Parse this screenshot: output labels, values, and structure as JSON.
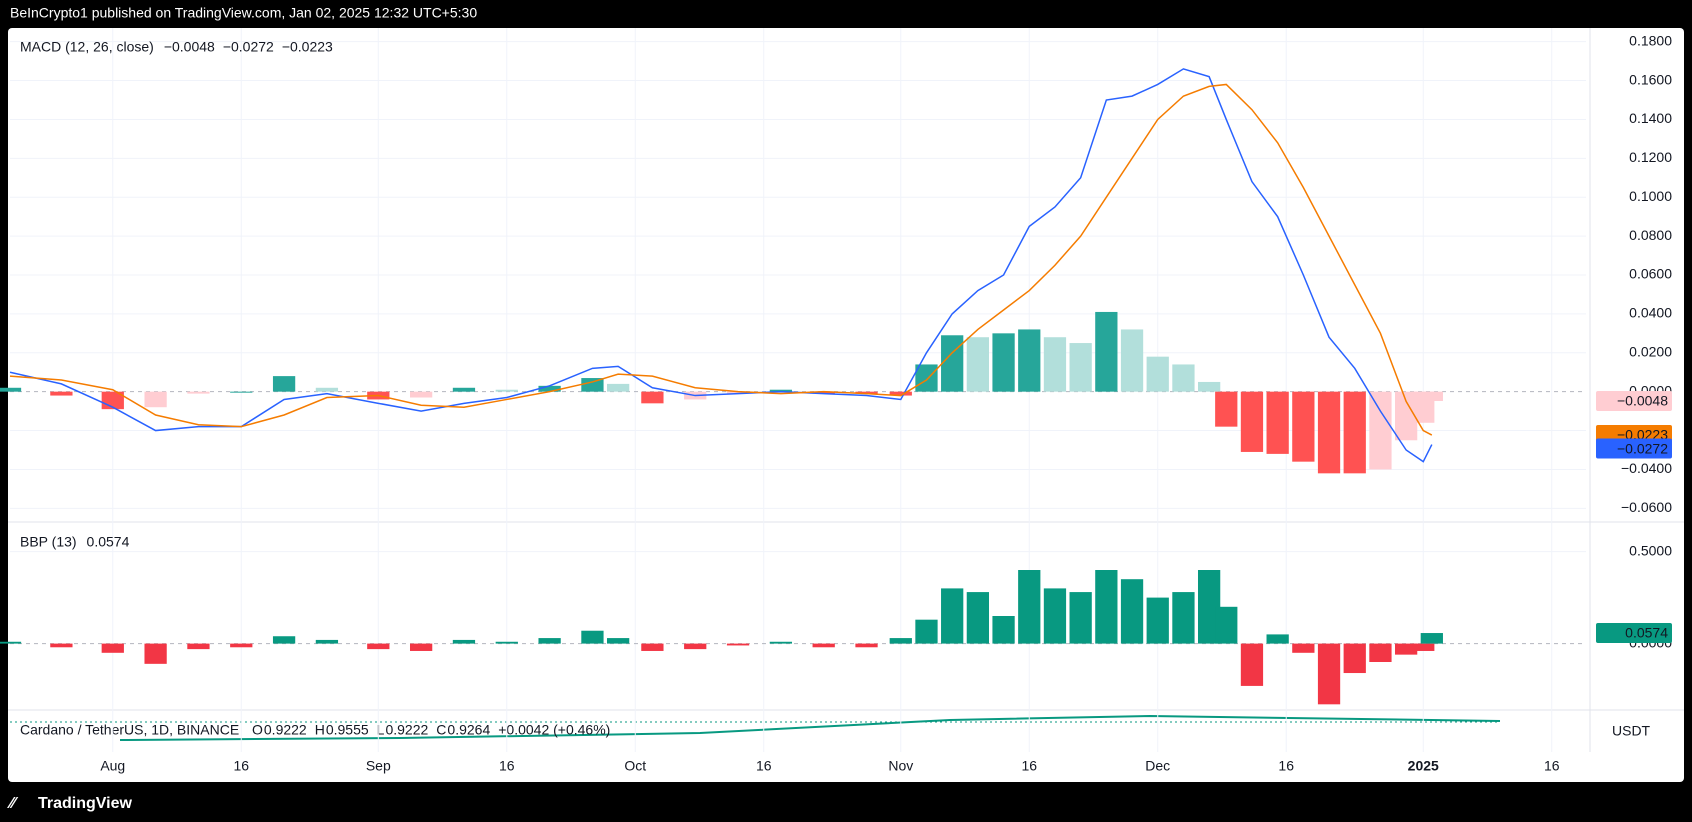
{
  "header": {
    "published": "BeInCrypto1 published on TradingView.com, Jan 02, 2025 12:32 UTC+5:30"
  },
  "footer": {
    "brand": "TradingView"
  },
  "symbol": {
    "name": "Cardano / TetherUS, 1D, BINANCE",
    "o_label": "O",
    "o": "0.9222",
    "h_label": "H",
    "h": "0.9555",
    "l_label": "L",
    "l": "0.9222",
    "c_label": "C",
    "c": "0.9264",
    "change": "+0.0042 (+0.46%)",
    "currency": "USDT"
  },
  "x_axis": {
    "xlim": [
      0,
      184
    ],
    "xticks": [
      {
        "value": 12,
        "label": "Aug"
      },
      {
        "value": 27,
        "label": "16"
      },
      {
        "value": 43,
        "label": "Sep"
      },
      {
        "value": 58,
        "label": "16"
      },
      {
        "value": 73,
        "label": "Oct"
      },
      {
        "value": 88,
        "label": "16"
      },
      {
        "value": 104,
        "label": "Nov"
      },
      {
        "value": 119,
        "label": "16"
      },
      {
        "value": 134,
        "label": "Dec"
      },
      {
        "value": 149,
        "label": "16"
      },
      {
        "value": 165,
        "label": "2025"
      },
      {
        "value": 180,
        "label": "16"
      }
    ]
  },
  "chart_data": [
    {
      "type": "line",
      "title": "MACD (12, 26, close)",
      "x": [
        0,
        6,
        12,
        17,
        22,
        27,
        32,
        37,
        43,
        48,
        53,
        58,
        63,
        68,
        71,
        75,
        80,
        85,
        90,
        95,
        100,
        104,
        107,
        110,
        113,
        116,
        119,
        122,
        125,
        128,
        131,
        134,
        137,
        140,
        142,
        145,
        148,
        151,
        154,
        157,
        160,
        163,
        165,
        166
      ],
      "histogram": {
        "last_label": "−0.0048",
        "badge_color": "#ffcdd2",
        "colors": {
          "up_strong": "#26a69a",
          "up_weak": "#b2dfdb",
          "down_strong": "#ff5252",
          "down_weak": "#ffcdd2"
        },
        "values": [
          0.002,
          -0.002,
          -0.009,
          -0.008,
          -0.001,
          0,
          0.008,
          0.002,
          -0.004,
          -0.003,
          0.002,
          0.001,
          0.003,
          0.007,
          0.004,
          -0.006,
          -0.004,
          -0.001,
          0.001,
          -0.001,
          -0.001,
          -0.002,
          0.014,
          0.029,
          0.028,
          0.03,
          0.032,
          0.028,
          0.025,
          0.041,
          0.032,
          0.018,
          0.014,
          0.005,
          -0.018,
          -0.031,
          -0.032,
          -0.036,
          -0.042,
          -0.042,
          -0.04,
          -0.025,
          -0.016,
          -0.0048
        ]
      },
      "series": [
        {
          "color": "#2962ff",
          "last_label": "−0.0272",
          "values": [
            0.01,
            0.004,
            -0.008,
            -0.02,
            -0.018,
            -0.018,
            -0.004,
            -0.001,
            -0.006,
            -0.01,
            -0.006,
            -0.003,
            0.003,
            0.012,
            0.013,
            0.002,
            -0.002,
            -0.001,
            0,
            -0.001,
            -0.002,
            -0.004,
            0.02,
            0.04,
            0.052,
            0.06,
            0.085,
            0.095,
            0.11,
            0.15,
            0.152,
            0.158,
            0.166,
            0.162,
            0.14,
            0.108,
            0.09,
            0.06,
            0.028,
            0.012,
            -0.01,
            -0.03,
            -0.036,
            -0.0272
          ]
        },
        {
          "color": "#f57c00",
          "last_label": "−0.0223",
          "values": [
            0.008,
            0.006,
            0.001,
            -0.012,
            -0.017,
            -0.018,
            -0.012,
            -0.003,
            -0.002,
            -0.007,
            -0.008,
            -0.004,
            0,
            0.005,
            0.009,
            0.008,
            0.002,
            0,
            -0.001,
            0,
            -0.001,
            -0.002,
            0.006,
            0.02,
            0.032,
            0.042,
            0.052,
            0.065,
            0.08,
            0.1,
            0.12,
            0.14,
            0.152,
            0.157,
            0.158,
            0.145,
            0.128,
            0.105,
            0.08,
            0.055,
            0.03,
            -0.005,
            -0.02,
            -0.0223
          ]
        }
      ],
      "ylim": [
        -0.066,
        0.186
      ],
      "yticks": [
        {
          "value": 0.18,
          "label": "0.1800"
        },
        {
          "value": 0.16,
          "label": "0.1600"
        },
        {
          "value": 0.14,
          "label": "0.1400"
        },
        {
          "value": 0.12,
          "label": "0.1200"
        },
        {
          "value": 0.1,
          "label": "0.1000"
        },
        {
          "value": 0.08,
          "label": "0.0800"
        },
        {
          "value": 0.06,
          "label": "0.0600"
        },
        {
          "value": 0.04,
          "label": "0.0400"
        },
        {
          "value": 0.02,
          "label": "0.0200"
        },
        {
          "value": 0,
          "label": "0.0000"
        },
        {
          "value": -0.02,
          "label": "−0.0200"
        },
        {
          "value": -0.04,
          "label": "−0.0400"
        },
        {
          "value": -0.06,
          "label": "−0.0600"
        }
      ],
      "grid": true
    },
    {
      "type": "bar",
      "title": "BBP (13)",
      "last_label": "0.0574",
      "pos_color": "#089981",
      "neg_color": "#f23645",
      "x": [
        0,
        6,
        12,
        17,
        22,
        27,
        32,
        37,
        43,
        48,
        53,
        58,
        63,
        68,
        71,
        75,
        80,
        85,
        90,
        95,
        100,
        104,
        107,
        110,
        113,
        116,
        119,
        122,
        125,
        128,
        131,
        134,
        137,
        140,
        142,
        145,
        148,
        151,
        154,
        157,
        160,
        163,
        165,
        166
      ],
      "values": [
        0.01,
        -0.02,
        -0.05,
        -0.11,
        -0.03,
        -0.02,
        0.04,
        0.02,
        -0.03,
        -0.04,
        0.02,
        0.01,
        0.03,
        0.07,
        0.03,
        -0.04,
        -0.03,
        -0.01,
        0.01,
        -0.02,
        -0.02,
        0.03,
        0.13,
        0.3,
        0.28,
        0.15,
        0.4,
        0.3,
        0.28,
        0.4,
        0.35,
        0.25,
        0.28,
        0.4,
        0.2,
        -0.23,
        0.05,
        -0.05,
        -0.33,
        -0.16,
        -0.1,
        -0.06,
        -0.04,
        0.0574
      ],
      "ylim": [
        -0.35,
        0.65
      ],
      "yticks": [
        {
          "value": 0.5,
          "label": "0.5000"
        },
        {
          "value": 0,
          "label": "0.0000"
        }
      ],
      "grid": true
    }
  ]
}
